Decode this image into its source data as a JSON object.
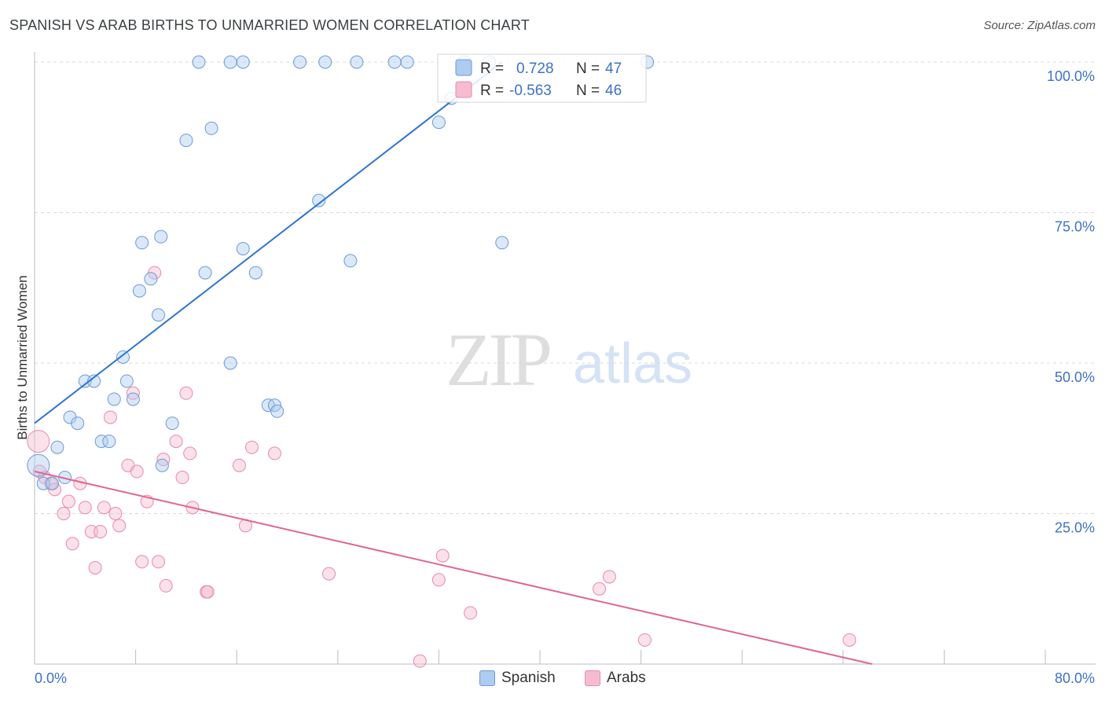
{
  "title": "SPANISH VS ARAB BIRTHS TO UNMARRIED WOMEN CORRELATION CHART",
  "source": "Source: ZipAtlas.com",
  "watermark": {
    "zip": "ZIP",
    "atlas": "atlas"
  },
  "colors": {
    "spanish_fill": "#aecbf0",
    "spanish_stroke": "#6c9bd6",
    "spanish_line": "#2e74d0",
    "arab_fill": "#f5bcd0",
    "arab_stroke": "#e88aab",
    "arab_line": "#e0668f",
    "tick_text": "#3d72c4",
    "grid": "#d9d9d9"
  },
  "legend": {
    "spanish": {
      "r_label": "R =",
      "r_value": "0.728",
      "n_label": "N =",
      "n_value": "47"
    },
    "arab": {
      "r_label": "R =",
      "r_value": "-0.563",
      "n_label": "N =",
      "n_value": "46"
    }
  },
  "bottom_legend": {
    "spanish": "Spanish",
    "arab": "Arabs"
  },
  "chart_data": {
    "type": "scatter",
    "title": "SPANISH VS ARAB BIRTHS TO UNMARRIED WOMEN CORRELATION CHART",
    "xlabel": "",
    "ylabel": "Births to Unmarried Women",
    "xlim": [
      0,
      80
    ],
    "ylim": [
      0,
      100
    ],
    "x_tick_labels": [
      "0.0%",
      "80.0%"
    ],
    "y_tick_labels": [
      "100.0%",
      "75.0%",
      "50.0%",
      "25.0%"
    ],
    "y_ticks": [
      100,
      75,
      50,
      25
    ],
    "grid": true,
    "legend_position": "top-center",
    "series": [
      {
        "name": "Spanish",
        "trend": {
          "x": [
            0,
            37
          ],
          "y": [
            40,
            100
          ]
        },
        "points": [
          {
            "x": 13,
            "y": 100
          },
          {
            "x": 15.5,
            "y": 100
          },
          {
            "x": 16.5,
            "y": 100
          },
          {
            "x": 21,
            "y": 100
          },
          {
            "x": 23,
            "y": 100
          },
          {
            "x": 25.5,
            "y": 100
          },
          {
            "x": 28.5,
            "y": 100
          },
          {
            "x": 29.5,
            "y": 100
          },
          {
            "x": 34,
            "y": 100
          },
          {
            "x": 36,
            "y": 100
          },
          {
            "x": 48.5,
            "y": 100
          },
          {
            "x": 33,
            "y": 94
          },
          {
            "x": 32,
            "y": 90
          },
          {
            "x": 14,
            "y": 89
          },
          {
            "x": 12,
            "y": 87
          },
          {
            "x": 22.5,
            "y": 77
          },
          {
            "x": 10,
            "y": 71
          },
          {
            "x": 8.5,
            "y": 70
          },
          {
            "x": 37,
            "y": 70
          },
          {
            "x": 16.5,
            "y": 69
          },
          {
            "x": 25,
            "y": 67
          },
          {
            "x": 13.5,
            "y": 65
          },
          {
            "x": 17.5,
            "y": 65
          },
          {
            "x": 9.2,
            "y": 64
          },
          {
            "x": 8.3,
            "y": 62
          },
          {
            "x": 9.8,
            "y": 58
          },
          {
            "x": 7,
            "y": 51
          },
          {
            "x": 15.5,
            "y": 50
          },
          {
            "x": 4,
            "y": 47
          },
          {
            "x": 4.7,
            "y": 47
          },
          {
            "x": 7.3,
            "y": 47
          },
          {
            "x": 6.3,
            "y": 44
          },
          {
            "x": 7.8,
            "y": 44
          },
          {
            "x": 18.5,
            "y": 43
          },
          {
            "x": 19,
            "y": 43
          },
          {
            "x": 19.2,
            "y": 42
          },
          {
            "x": 2.8,
            "y": 41
          },
          {
            "x": 3.4,
            "y": 40
          },
          {
            "x": 10.9,
            "y": 40
          },
          {
            "x": 5.3,
            "y": 37
          },
          {
            "x": 5.9,
            "y": 37
          },
          {
            "x": 1.8,
            "y": 36
          },
          {
            "x": 0.3,
            "y": 33
          },
          {
            "x": 10.1,
            "y": 33
          },
          {
            "x": 0.7,
            "y": 30
          },
          {
            "x": 1.4,
            "y": 30
          },
          {
            "x": 2.4,
            "y": 31
          }
        ]
      },
      {
        "name": "Arabs",
        "trend": {
          "x": [
            0,
            66.3
          ],
          "y": [
            32,
            0
          ]
        },
        "points": [
          {
            "x": 0.3,
            "y": 37
          },
          {
            "x": 0.4,
            "y": 32
          },
          {
            "x": 0.8,
            "y": 31
          },
          {
            "x": 1.3,
            "y": 30
          },
          {
            "x": 1.6,
            "y": 29
          },
          {
            "x": 3.6,
            "y": 30
          },
          {
            "x": 2.7,
            "y": 27
          },
          {
            "x": 2.3,
            "y": 25
          },
          {
            "x": 4,
            "y": 26
          },
          {
            "x": 5.5,
            "y": 26
          },
          {
            "x": 6.4,
            "y": 25
          },
          {
            "x": 6.7,
            "y": 23
          },
          {
            "x": 4.5,
            "y": 22
          },
          {
            "x": 5.2,
            "y": 22
          },
          {
            "x": 3,
            "y": 20
          },
          {
            "x": 4.8,
            "y": 16
          },
          {
            "x": 9.5,
            "y": 65
          },
          {
            "x": 7.8,
            "y": 45
          },
          {
            "x": 12,
            "y": 45
          },
          {
            "x": 6,
            "y": 41
          },
          {
            "x": 7.4,
            "y": 33
          },
          {
            "x": 8.1,
            "y": 32
          },
          {
            "x": 10.2,
            "y": 34
          },
          {
            "x": 11.2,
            "y": 37
          },
          {
            "x": 12.3,
            "y": 35
          },
          {
            "x": 11.7,
            "y": 31
          },
          {
            "x": 8.9,
            "y": 27
          },
          {
            "x": 12.5,
            "y": 26
          },
          {
            "x": 8.5,
            "y": 17
          },
          {
            "x": 9.8,
            "y": 17
          },
          {
            "x": 10.4,
            "y": 13
          },
          {
            "x": 13.6,
            "y": 12
          },
          {
            "x": 13.7,
            "y": 12
          },
          {
            "x": 16.2,
            "y": 33
          },
          {
            "x": 17.2,
            "y": 36
          },
          {
            "x": 19,
            "y": 35
          },
          {
            "x": 16.7,
            "y": 23
          },
          {
            "x": 23.3,
            "y": 15
          },
          {
            "x": 32.3,
            "y": 18
          },
          {
            "x": 32,
            "y": 14
          },
          {
            "x": 34.5,
            "y": 8.5
          },
          {
            "x": 44.7,
            "y": 12.5
          },
          {
            "x": 45.5,
            "y": 14.5
          },
          {
            "x": 48.3,
            "y": 4
          },
          {
            "x": 64.5,
            "y": 4
          },
          {
            "x": 30.5,
            "y": 0.5
          }
        ]
      }
    ]
  }
}
